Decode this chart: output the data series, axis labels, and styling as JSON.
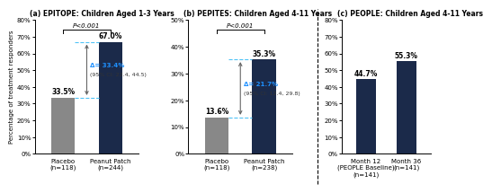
{
  "panel_a": {
    "title": "(a) EPITOPE: Children Aged 1-3 Years",
    "categories": [
      "Placebo\n(n=118)",
      "Peanut Patch\n(n=244)"
    ],
    "values": [
      33.5,
      67.0
    ],
    "colors": [
      "#888888",
      "#1b2a4a"
    ],
    "ylim": [
      0,
      80
    ],
    "yticks": [
      0,
      10,
      20,
      30,
      40,
      50,
      60,
      70,
      80
    ],
    "pvalue": "P<0.001",
    "delta_text": "Δ= 33.4%",
    "ci_text": "(95% CI: 22.4, 44.5)",
    "bar_labels": [
      "33.5%",
      "67.0%"
    ]
  },
  "panel_b": {
    "title": "(b) PEPITES: Children Aged 4-11 Years",
    "categories": [
      "Placebo\n(n=118)",
      "Peanut Patch\n(n=238)"
    ],
    "values": [
      13.6,
      35.3
    ],
    "colors": [
      "#888888",
      "#1b2a4a"
    ],
    "ylim": [
      0,
      50
    ],
    "yticks": [
      0,
      10,
      20,
      30,
      40,
      50
    ],
    "pvalue": "P<0.001",
    "delta_text": "Δ= 21.7%",
    "ci_text": "(95% CI: 12.4, 29.8)",
    "bar_labels": [
      "13.6%",
      "35.3%"
    ]
  },
  "panel_c": {
    "title": "(c) PEOPLE: Children Aged 4-11 Years",
    "categories": [
      "Month 12\n(PEOPLE Baseline)\n(n=141)",
      "Month 36\n(n=141)"
    ],
    "values": [
      44.7,
      55.3
    ],
    "colors": [
      "#1b2a4a",
      "#1b2a4a"
    ],
    "ylim": [
      0,
      80
    ],
    "yticks": [
      0,
      10,
      20,
      30,
      40,
      50,
      60,
      70,
      80
    ],
    "bar_labels": [
      "44.7%",
      "55.3%"
    ]
  },
  "ylabel": "Percentage of treatment responders",
  "arrow_color": "#666666",
  "dashed_color": "#4fc3f7",
  "delta_color": "#1e90ff"
}
